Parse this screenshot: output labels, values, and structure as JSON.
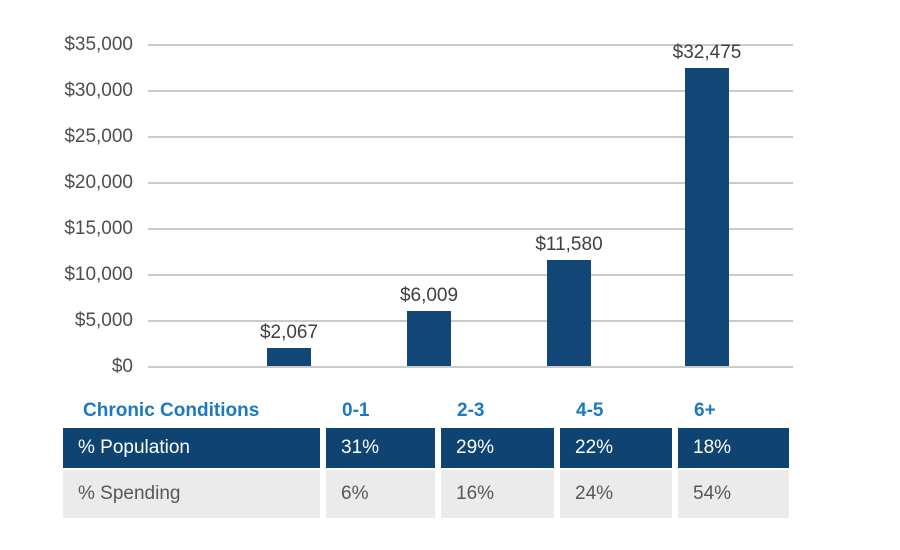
{
  "chart_data": {
    "type": "bar",
    "title": "",
    "categories": [
      "0-1",
      "2-3",
      "4-5",
      "6+"
    ],
    "values": [
      2067,
      6009,
      11580,
      32475
    ],
    "bar_labels": [
      "$2,067",
      "$6,009",
      "$11,580",
      "$32,475"
    ],
    "xlabel": "Chronic Conditions",
    "ylabel": "",
    "ylim": [
      0,
      35000
    ],
    "ytick_step": 5000,
    "ytick_labels": [
      "$0",
      "$5,000",
      "$10,000",
      "$15,000",
      "$20,000",
      "$25,000",
      "$30,000",
      "$35,000"
    ],
    "grid": true,
    "legend": null
  },
  "table": {
    "header_label": "Chronic Conditions",
    "header_cols": [
      "0-1",
      "2-3",
      "4-5",
      "6+"
    ],
    "rows": [
      {
        "label": "% Population",
        "values": [
          "31%",
          "29%",
          "22%",
          "18%"
        ],
        "style": "navy"
      },
      {
        "label": "% Spending",
        "values": [
          "6%",
          "16%",
          "24%",
          "54%"
        ],
        "style": "gray"
      }
    ]
  },
  "colors": {
    "bar_navy": "#114677",
    "table_navy_bg": "#0f4472",
    "header_blue": "#1b7ac1",
    "gridline": "#cbcbcb",
    "tick_text": "#4e4e4e",
    "bar_label_text": "#404040",
    "gray_row_bg": "#ebebeb",
    "gray_row_text": "#57575a",
    "navy_row_text": "#ffffff"
  }
}
